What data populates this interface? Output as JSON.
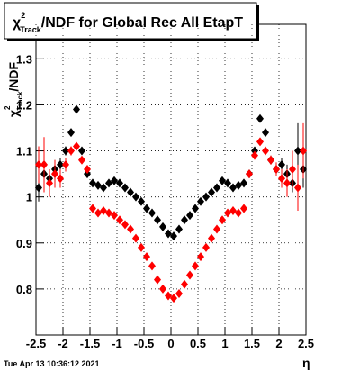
{
  "chart_data": {
    "type": "scatter",
    "title": {
      "symbol": "χ",
      "sup": "2",
      "sub": "Track",
      "text": "/NDF for Global Rec All EtapT"
    },
    "y_label": {
      "symbol": "χ",
      "sup": "2",
      "sub": "Track",
      "text": "/NDF"
    },
    "x_label": "η",
    "timestamp": "Tue Apr 13 10:36:12 2021",
    "x": [
      -2.45,
      -2.35,
      -2.25,
      -2.15,
      -2.05,
      -1.95,
      -1.85,
      -1.75,
      -1.65,
      -1.55,
      -1.45,
      -1.35,
      -1.25,
      -1.15,
      -1.05,
      -0.95,
      -0.85,
      -0.75,
      -0.65,
      -0.55,
      -0.45,
      -0.35,
      -0.25,
      -0.15,
      -0.05,
      0.05,
      0.15,
      0.25,
      0.35,
      0.45,
      0.55,
      0.65,
      0.75,
      0.85,
      0.95,
      1.05,
      1.15,
      1.25,
      1.35,
      1.45,
      1.55,
      1.65,
      1.75,
      1.85,
      1.95,
      2.05,
      2.15,
      2.25,
      2.35,
      2.45
    ],
    "series": [
      {
        "color": "#000000",
        "values": [
          1.02,
          1.05,
          1.04,
          1.06,
          1.07,
          1.1,
          1.14,
          1.19,
          1.1,
          1.05,
          1.03,
          1.025,
          1.02,
          1.03,
          1.035,
          1.03,
          1.02,
          1.01,
          1.0,
          0.99,
          0.975,
          0.965,
          0.95,
          0.935,
          0.92,
          0.915,
          0.93,
          0.95,
          0.96,
          0.975,
          0.99,
          1.0,
          1.01,
          1.02,
          1.035,
          1.03,
          1.02,
          1.025,
          1.03,
          1.05,
          1.1,
          1.17,
          1.14,
          1.08,
          1.06,
          1.07,
          1.05,
          1.03,
          1.1,
          1.06
        ],
        "errors": [
          0.03,
          0.03,
          0.02,
          0.02,
          0.015,
          0.01,
          0.008,
          0.006,
          0.005,
          0.004,
          0.003,
          0.003,
          0.003,
          0.003,
          0.003,
          0.003,
          0.003,
          0.003,
          0.003,
          0.003,
          0.003,
          0.003,
          0.003,
          0.003,
          0.003,
          0.003,
          0.003,
          0.003,
          0.003,
          0.003,
          0.003,
          0.003,
          0.003,
          0.003,
          0.003,
          0.003,
          0.003,
          0.003,
          0.003,
          0.003,
          0.004,
          0.005,
          0.006,
          0.008,
          0.01,
          0.015,
          0.02,
          0.02,
          0.06,
          0.04
        ]
      },
      {
        "color": "#ff0000",
        "values": [
          1.07,
          1.07,
          1.03,
          1.05,
          1.04,
          1.07,
          1.1,
          1.11,
          1.08,
          1.06,
          0.975,
          0.965,
          0.97,
          0.965,
          0.96,
          0.95,
          0.94,
          0.93,
          0.91,
          0.89,
          0.87,
          0.85,
          0.82,
          0.8,
          0.785,
          0.78,
          0.79,
          0.81,
          0.83,
          0.85,
          0.87,
          0.89,
          0.91,
          0.93,
          0.95,
          0.965,
          0.97,
          0.965,
          0.975,
          1.05,
          1.09,
          1.12,
          1.1,
          1.08,
          1.06,
          1.04,
          1.03,
          1.06,
          1.02,
          1.1
        ],
        "errors": [
          0.04,
          0.06,
          0.03,
          0.03,
          0.02,
          0.015,
          0.01,
          0.008,
          0.006,
          0.005,
          0.004,
          0.003,
          0.003,
          0.003,
          0.003,
          0.003,
          0.003,
          0.003,
          0.003,
          0.003,
          0.003,
          0.003,
          0.003,
          0.003,
          0.003,
          0.003,
          0.003,
          0.003,
          0.003,
          0.003,
          0.003,
          0.003,
          0.003,
          0.003,
          0.003,
          0.003,
          0.003,
          0.003,
          0.003,
          0.004,
          0.005,
          0.006,
          0.008,
          0.01,
          0.015,
          0.02,
          0.03,
          0.04,
          0.05,
          0.06
        ]
      }
    ],
    "xlim": [
      -2.5,
      2.5
    ],
    "ylim": [
      0.7,
      1.375
    ],
    "xticks": [
      -2.5,
      -2,
      -1.5,
      -1,
      -0.5,
      0,
      0.5,
      1,
      1.5,
      2,
      2.5
    ],
    "yticks": [
      0.8,
      0.9,
      1,
      1.1,
      1.2,
      1.3
    ],
    "grid": true
  }
}
